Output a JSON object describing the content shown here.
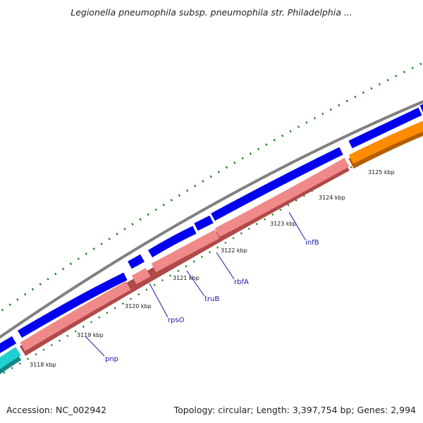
{
  "title": "Legionella pneumophila subsp. pneumophila str. Philadelphia ...",
  "footer": {
    "accession": "Accession: NC_002942",
    "summary": "Topology: circular; Length: 3,397,754 bp; Genes: 2,994"
  },
  "colors": {
    "backbone": "#808080",
    "forward_cds": "#0000ee",
    "gene": "#f08a8a",
    "gene_shadow": "#b04a4a",
    "orange": "#ff8c00",
    "orange_shadow": "#b35f00",
    "cyan": "#20d0d0",
    "cyan_shadow": "#108888",
    "gc_dots": "#1a7a1a",
    "label": "#1a1aa6"
  },
  "tick_labels": [
    "3118 kbp",
    "3119 kbp",
    "3120 kbp",
    "3121 kbp",
    "3122 kbp",
    "3123 kbp",
    "3124 kbp",
    "3125 kbp"
  ],
  "gene_labels": [
    "pnp",
    "rpsO",
    "truB",
    "rbfA",
    "infB"
  ]
}
